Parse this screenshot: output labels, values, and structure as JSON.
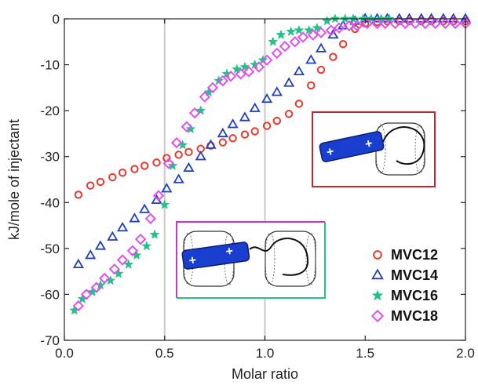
{
  "chart_data": {
    "type": "scatter",
    "xlabel": "Molar ratio",
    "ylabel": "kJ/mole of injectant",
    "xlim": [
      0,
      2
    ],
    "ylim": [
      -70,
      0
    ],
    "xticks": [
      0,
      0.5,
      1,
      1.5,
      2
    ],
    "xtick_labels": [
      "0.0",
      "0.5",
      "1.0",
      "1.5",
      "2.0"
    ],
    "yticks": [
      0,
      -10,
      -20,
      -30,
      -40,
      -50,
      -60,
      -70
    ],
    "ytick_labels": [
      "0",
      "-10",
      "-20",
      "-30",
      "-40",
      "-50",
      "-60",
      "-70"
    ],
    "reference_lines_x": [
      0.5,
      1.0
    ],
    "legend_position": "bottom-right",
    "series": [
      {
        "name": "MVC12",
        "marker": "circle",
        "color": "#e8392a",
        "x": [
          0.07,
          0.13,
          0.18,
          0.24,
          0.29,
          0.35,
          0.4,
          0.46,
          0.51,
          0.57,
          0.62,
          0.68,
          0.73,
          0.79,
          0.84,
          0.9,
          0.95,
          1.01,
          1.06,
          1.12,
          1.17,
          1.23,
          1.28,
          1.34,
          1.39,
          1.45,
          1.5,
          1.56,
          1.61,
          1.67,
          1.72,
          1.78,
          1.83,
          1.89,
          1.94,
          2.0
        ],
        "y": [
          -38.3,
          -36.3,
          -35.5,
          -34.5,
          -33.5,
          -32.7,
          -32.0,
          -31.3,
          -30.3,
          -29.6,
          -29.0,
          -28.3,
          -27.6,
          -26.9,
          -26.0,
          -25.2,
          -24.5,
          -23.3,
          -22.2,
          -20.7,
          -18.5,
          -14.5,
          -11.1,
          -8.3,
          -5.5,
          -2.2,
          -1.0,
          -0.7,
          -0.5,
          -0.5,
          -0.5,
          -0.5,
          -0.5,
          -0.5,
          -0.5,
          -0.5
        ]
      },
      {
        "name": "MVC14",
        "marker": "triangle",
        "color": "#1f3fbf",
        "x": [
          0.07,
          0.13,
          0.18,
          0.24,
          0.29,
          0.35,
          0.4,
          0.46,
          0.51,
          0.57,
          0.62,
          0.68,
          0.73,
          0.79,
          0.84,
          0.9,
          0.95,
          1.01,
          1.06,
          1.12,
          1.17,
          1.23,
          1.28,
          1.34,
          1.39,
          1.45,
          1.5,
          1.56,
          1.61,
          1.67,
          1.72,
          1.78,
          1.83,
          1.89,
          1.94,
          2.0
        ],
        "y": [
          -53.5,
          -51.5,
          -49.5,
          -47.5,
          -45.5,
          -43.5,
          -41.5,
          -39.5,
          -37.0,
          -35.0,
          -32.5,
          -30.0,
          -27.5,
          -25.0,
          -23.0,
          -21.5,
          -19.5,
          -17.5,
          -16.0,
          -14.0,
          -11.5,
          -9.0,
          -6.5,
          -3.5,
          -1.5,
          -0.5,
          0.0,
          0.0,
          0.0,
          0.0,
          0.0,
          0.0,
          0.0,
          0.0,
          0.0,
          0.0
        ]
      },
      {
        "name": "MVC16",
        "marker": "star",
        "color": "#22c38a",
        "x": [
          0.05,
          0.09,
          0.14,
          0.18,
          0.23,
          0.27,
          0.32,
          0.36,
          0.41,
          0.45,
          0.5,
          0.54,
          0.59,
          0.63,
          0.68,
          0.72,
          0.77,
          0.81,
          0.86,
          0.9,
          0.95,
          0.99,
          1.04,
          1.08,
          1.13,
          1.17,
          1.22,
          1.26,
          1.31,
          1.35,
          1.4,
          1.44,
          1.49,
          1.53,
          1.58,
          1.62
        ],
        "y": [
          -63.5,
          -61.0,
          -59.5,
          -58.0,
          -57.0,
          -55.5,
          -53.5,
          -51.5,
          -49.5,
          -47.0,
          -40.5,
          -32.0,
          -27.5,
          -24.0,
          -20.0,
          -16.0,
          -13.5,
          -12.0,
          -11.0,
          -10.5,
          -10.0,
          -9.0,
          -5.0,
          -3.5,
          -2.8,
          -2.5,
          -2.5,
          -2.0,
          -0.5,
          0.0,
          0.0,
          0.0,
          0.0,
          0.0,
          0.0,
          0.0
        ]
      },
      {
        "name": "MVC18",
        "marker": "diamond",
        "color": "#e050f0",
        "x": [
          0.07,
          0.11,
          0.16,
          0.2,
          0.25,
          0.29,
          0.34,
          0.38,
          0.43,
          0.47,
          0.52,
          0.56,
          0.61,
          0.65,
          0.7,
          0.74,
          0.79,
          0.83,
          0.88,
          0.92,
          0.97,
          1.01,
          1.06,
          1.1,
          1.15,
          1.19,
          1.24,
          1.28,
          1.33,
          1.37,
          1.42,
          1.46,
          1.51,
          1.56,
          1.6,
          1.65,
          1.7,
          1.75,
          1.8,
          1.85,
          1.9,
          1.95,
          2.0
        ],
        "y": [
          -62.5,
          -60.0,
          -58.5,
          -56.5,
          -54.5,
          -52.5,
          -50.5,
          -48.0,
          -43.5,
          -38.5,
          -31.5,
          -27.0,
          -23.5,
          -20.5,
          -17.0,
          -15.0,
          -13.5,
          -12.5,
          -12.0,
          -11.5,
          -10.5,
          -9.0,
          -7.5,
          -6.0,
          -5.0,
          -4.0,
          -3.5,
          -3.0,
          -2.5,
          -2.0,
          -1.5,
          -1.5,
          -1.0,
          -1.0,
          -1.0,
          -1.0,
          -1.0,
          -1.0,
          -1.0,
          -1.0,
          -1.0,
          -1.0,
          -1.0
        ]
      }
    ],
    "insets": [
      {
        "frame_colors": [
          "#c0282e"
        ],
        "charge_marks": [
          "+",
          "+"
        ]
      },
      {
        "frame_colors": [
          "#cc33cc",
          "#22c38a"
        ],
        "charge_marks": [
          "+",
          "+"
        ]
      }
    ]
  }
}
